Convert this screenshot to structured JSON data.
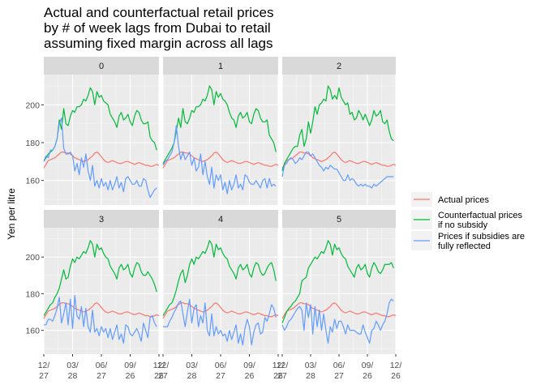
{
  "chart_data": {
    "type": "line",
    "title": [
      "Actual and counterfactual retail prices",
      "by # of week lags from Dubai to retail",
      "assuming fixed margin across all lags"
    ],
    "ylabel": "Yen per litre",
    "xlabel": "",
    "ylim": [
      147,
      216
    ],
    "yticks": [
      160,
      180,
      200
    ],
    "x_ticks": [
      [
        "12/",
        "27"
      ],
      [
        "03/",
        "28"
      ],
      [
        "06/",
        "27"
      ],
      [
        "09/",
        "26"
      ],
      [
        "12/",
        "26"
      ]
    ],
    "x_tick_positions": [
      0,
      13,
      26,
      39,
      52
    ],
    "grid": true,
    "legend_position": "right",
    "panels": [
      "0",
      "1",
      "2",
      "3",
      "4",
      "5"
    ],
    "series": [
      {
        "name": "Actual prices",
        "color": "#F8766D",
        "values": [
          166.5,
          168.5,
          170.5,
          171,
          171.5,
          172,
          173,
          174,
          175,
          175,
          174.5,
          174.5,
          174,
          173,
          172,
          171.5,
          171,
          170.5,
          170,
          170.5,
          171,
          172,
          173,
          174.5,
          175,
          174,
          172.5,
          171,
          170,
          169.5,
          170,
          170.5,
          170,
          169.5,
          169,
          169,
          169.5,
          170,
          170,
          169.5,
          169,
          168.5,
          169,
          169.5,
          169,
          168.5,
          168,
          168,
          167.5,
          167.5,
          168,
          168.5,
          168
        ]
      },
      {
        "name": "Counterfactual prices if no subsidy",
        "color": "#00BA38",
        "panels": [
          [
            170,
            172,
            174,
            175,
            176,
            178,
            182,
            192,
            187,
            198,
            190,
            189,
            194,
            197,
            196,
            199,
            199,
            200,
            203,
            202,
            205,
            209,
            207,
            200,
            207,
            204,
            205,
            202,
            201,
            200,
            195,
            193,
            191,
            188,
            194,
            196,
            192,
            193,
            195,
            191,
            189,
            194,
            197,
            196,
            192,
            190,
            190,
            191,
            183,
            181,
            180,
            176
          ],
          [
            169,
            171,
            173,
            175,
            177,
            180,
            186,
            193,
            188,
            198,
            191,
            190,
            193,
            197,
            196,
            199,
            199,
            200,
            203,
            202,
            205,
            210,
            208,
            200,
            207,
            204,
            206,
            203,
            202,
            200,
            196,
            193,
            192,
            188,
            194,
            196,
            193,
            194,
            196,
            191,
            190,
            195,
            198,
            197,
            193,
            191,
            191,
            192,
            184,
            182,
            180,
            175
          ],
          [
            165,
            169,
            171,
            173,
            175,
            177,
            178,
            178,
            184,
            187,
            178,
            182,
            191,
            185,
            191,
            199,
            195,
            200,
            201,
            203,
            202,
            210,
            208,
            203,
            205,
            203,
            209,
            204,
            202,
            200,
            201,
            195,
            196,
            192,
            193,
            197,
            195,
            192,
            195,
            192,
            189,
            192,
            197,
            194,
            195,
            197,
            191,
            190,
            192,
            186,
            182,
            181
          ],
          [
            168,
            170,
            172,
            174,
            175,
            178,
            180,
            183,
            188,
            193,
            188,
            189,
            195,
            199,
            197,
            200,
            199,
            201,
            203,
            202,
            205,
            209,
            207,
            200,
            207,
            204,
            205,
            202,
            200,
            199,
            195,
            193,
            191,
            188,
            194,
            196,
            193,
            194,
            196,
            191,
            189,
            194,
            197,
            196,
            192,
            190,
            190,
            192,
            190,
            188,
            185,
            181
          ],
          [
            168,
            170,
            172,
            174,
            175,
            178,
            182,
            187,
            191,
            193,
            186,
            190,
            196,
            199,
            196,
            200,
            199,
            201,
            203,
            202,
            205,
            209,
            207,
            200,
            207,
            204,
            205,
            202,
            200,
            199,
            195,
            193,
            191,
            188,
            194,
            196,
            193,
            194,
            196,
            191,
            189,
            194,
            197,
            196,
            192,
            190,
            191,
            194,
            196,
            197,
            193,
            187
          ],
          [
            164,
            167,
            170,
            172,
            173,
            175,
            176,
            178,
            180,
            187,
            188,
            189,
            194,
            196,
            198,
            200,
            199,
            201,
            203,
            202,
            205,
            209,
            207,
            201,
            207,
            204,
            205,
            202,
            200,
            199,
            195,
            193,
            191,
            189,
            194,
            196,
            193,
            194,
            196,
            191,
            189,
            194,
            197,
            195,
            192,
            191,
            193,
            196,
            196,
            196,
            197,
            194
          ]
        ]
      },
      {
        "name": "Prices if subsidies are fully reflected",
        "color": "#619CFF",
        "panels": [
          [
            170,
            173,
            172,
            176,
            176,
            178,
            182,
            190,
            193,
            177,
            174,
            174,
            175,
            173,
            165,
            169,
            163,
            172,
            167,
            174,
            165,
            160,
            168,
            157,
            160,
            156,
            161,
            157,
            159,
            155,
            160,
            155,
            158,
            162,
            156,
            159,
            154,
            161,
            162,
            160,
            158,
            158,
            160,
            157,
            157,
            161,
            160,
            155,
            151,
            153,
            155,
            156
          ],
          [
            168,
            170,
            171,
            173,
            175,
            180,
            189,
            178,
            171,
            175,
            171,
            173,
            175,
            168,
            172,
            165,
            167,
            174,
            163,
            170,
            162,
            158,
            167,
            156,
            163,
            160,
            163,
            155,
            159,
            153,
            160,
            155,
            158,
            163,
            156,
            158,
            155,
            163,
            162,
            159,
            158,
            158,
            160,
            158,
            156,
            160,
            161,
            156,
            161,
            157,
            158,
            157
          ],
          [
            162,
            168,
            169,
            171,
            172,
            171,
            169,
            170,
            172,
            171,
            173,
            175,
            175,
            173,
            174,
            172,
            170,
            168,
            167,
            165,
            167,
            166,
            168,
            167,
            166,
            166,
            164,
            162,
            160,
            160,
            163,
            160,
            161,
            160,
            158,
            157,
            158,
            157,
            158,
            157,
            157,
            156,
            158,
            157,
            158,
            159,
            160,
            161,
            162,
            162,
            162,
            162
          ],
          [
            163,
            163,
            166,
            166,
            165,
            168,
            172,
            178,
            164,
            169,
            175,
            163,
            177,
            161,
            179,
            168,
            166,
            173,
            162,
            172,
            162,
            159,
            171,
            159,
            161,
            157,
            162,
            159,
            161,
            156,
            161,
            155,
            159,
            163,
            155,
            158,
            153,
            163,
            162,
            158,
            157,
            159,
            161,
            158,
            154,
            164,
            160,
            156,
            167,
            168,
            164,
            162
          ],
          [
            162,
            162,
            162,
            165,
            167,
            170,
            172,
            175,
            176,
            169,
            162,
            170,
            177,
            164,
            172,
            174,
            162,
            168,
            164,
            175,
            160,
            157,
            169,
            157,
            162,
            158,
            160,
            157,
            158,
            154,
            160,
            155,
            159,
            163,
            153,
            158,
            152,
            161,
            166,
            162,
            152,
            159,
            163,
            164,
            158,
            159,
            167,
            165,
            169,
            174,
            172,
            167
          ],
          [
            163,
            160,
            162,
            165,
            166,
            168,
            170,
            172,
            173,
            171,
            160,
            175,
            167,
            174,
            158,
            173,
            162,
            171,
            160,
            169,
            160,
            153,
            162,
            159,
            166,
            161,
            165,
            165,
            162,
            158,
            163,
            160,
            160,
            160,
            159,
            158,
            158,
            163,
            159,
            156,
            153,
            160,
            161,
            165,
            163,
            160,
            163,
            165,
            169,
            175,
            177,
            176
          ]
        ]
      }
    ]
  },
  "legend": {
    "items": [
      {
        "lines": [
          "Actual prices"
        ],
        "color": "#F8766D"
      },
      {
        "lines": [
          "Counterfactual prices",
          "if no subsidy"
        ],
        "color": "#00BA38"
      },
      {
        "lines": [
          "Prices if subsidies are",
          "fully reflected"
        ],
        "color": "#619CFF"
      }
    ]
  }
}
